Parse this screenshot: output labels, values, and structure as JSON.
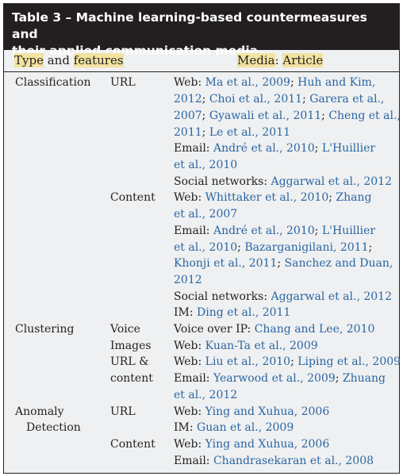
{
  "title": {
    "line1": "Table 3 – Machine learning-based countermeasures and",
    "line2": "their applied communication media."
  },
  "header": {
    "col1_a": "Type",
    "col1_and": " and ",
    "col1_b": "features",
    "col2_a": "Media",
    "col2_sep": ": ",
    "col2_b": "Article"
  },
  "rows": {
    "classification": "Classification",
    "url": "URL",
    "content": "Content",
    "clustering": "Clustering",
    "voice": "Voice",
    "images": "Images",
    "url_amp": "URL &",
    "content2": "content",
    "anomaly1": "Anomaly",
    "anomaly2": "Detection",
    "url3": "URL",
    "content3": "Content"
  },
  "lines": {
    "l1a": "Web: ",
    "l1b": "Ma et al., 2009",
    "l1c": "; ",
    "l1d": "Huh and Kim,",
    "l2a": "2012",
    "l2b": "; ",
    "l2c": "Choi et al., 2011",
    "l2d": "; ",
    "l2e": "Garera et al.,",
    "l3a": "2007",
    "l3b": "; ",
    "l3c": "Gyawali et al., 2011",
    "l3d": "; ",
    "l3e": "Cheng et al.,",
    "l4a": "2011",
    "l4b": "; ",
    "l4c": "Le et al., 2011",
    "l5a": "Email: ",
    "l5b": "André et al., 2010",
    "l5c": "; ",
    "l5d": "L'Huillier",
    "l6a": "et al., 2010",
    "l7a": "Social networks: ",
    "l7b": "Aggarwal et al., 2012",
    "l8a": "Web: ",
    "l8b": "Whittaker et al., 2010",
    "l8c": "; ",
    "l8d": "Zhang",
    "l9a": "et al., 2007",
    "l10a": "Email: ",
    "l10b": "André et al., 2010",
    "l10c": "; ",
    "l10d": "L'Huillier",
    "l11a": "et al., 2010",
    "l11b": "; ",
    "l11c": "Bazarganigilani, 2011",
    "l11d": ";",
    "l12a": "Khonji et al., 2011",
    "l12b": "; ",
    "l12c": "Sanchez and Duan,",
    "l13a": "2012",
    "l14a": "Social networks: ",
    "l14b": "Aggarwal et al., 2012",
    "l15a": "IM: ",
    "l15b": "Ding et al., 2011",
    "l16a": "Voice over IP: ",
    "l16b": "Chang and Lee, 2010",
    "l17a": "Web: ",
    "l17b": "Kuan-Ta et al., 2009",
    "l18a": "Web: ",
    "l18b": "Liu et al., 2010",
    "l18c": "; ",
    "l18d": "Liping et al., 2009",
    "l19a": "Email: ",
    "l19b": "Yearwood et al., 2009",
    "l19c": "; ",
    "l19d": "Zhuang",
    "l20a": "et al., 2012",
    "l21a": "Web: ",
    "l21b": "Ying and Xuhua, 2006",
    "l22a": "IM: ",
    "l22b": "Guan et al., 2009",
    "l23a": "Web: ",
    "l23b": "Ying and Xuhua, 2006",
    "l24a": "Email: ",
    "l24b": "Chandrasekaran et al., 2008"
  },
  "colors": {
    "title_bg": "#231f20",
    "link": "#2a66a3",
    "highlight": "#f2e3a0",
    "panel": "#eff0f1"
  }
}
